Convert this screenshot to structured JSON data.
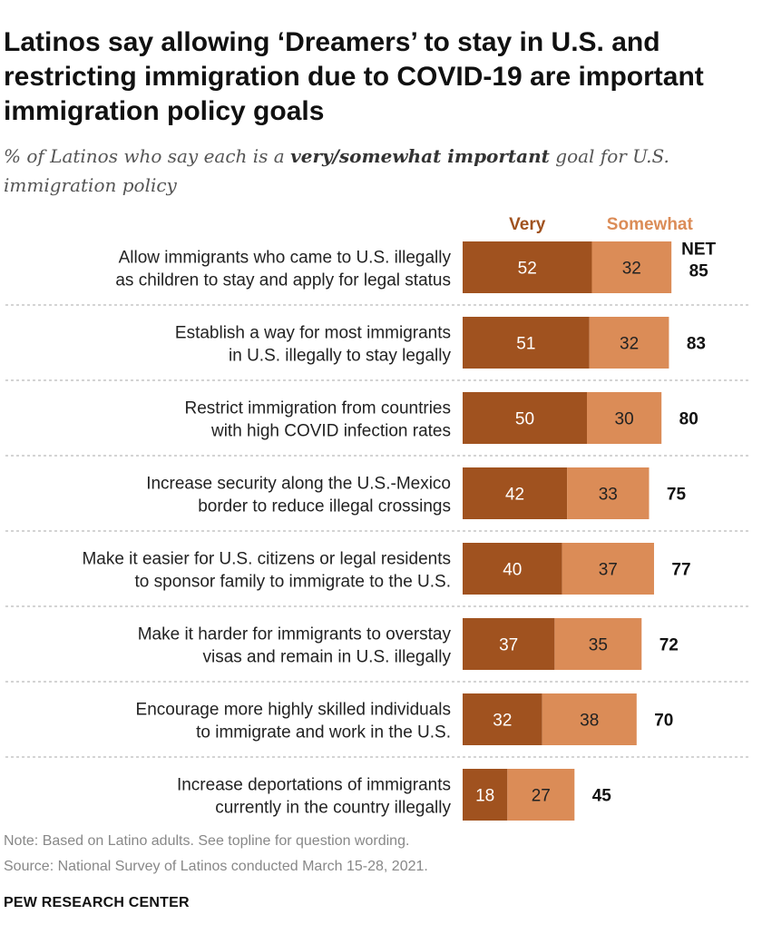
{
  "title": "Latinos say allowing ‘Dreamers’ to stay in U.S. and restricting immigration due to COVID-19 are important immigration policy goals",
  "subtitle": {
    "before": "% of Latinos who say each is a ",
    "emphasis": "very/somewhat important",
    "after": " goal for U.S. immigration policy"
  },
  "note": "Note: Based on Latino adults. See topline for question wording.",
  "source": "Source: National Survey of Latinos conducted March 15-28, 2021.",
  "brand": "PEW RESEARCH CENTER",
  "chart_data": {
    "type": "bar",
    "orientation": "horizontal",
    "stacked": true,
    "categories": [
      [
        "Allow immigrants who came to U.S. illegally",
        "as children to stay and apply for legal status"
      ],
      [
        "Establish a way for most immigrants",
        "in U.S. illegally to stay legally"
      ],
      [
        "Restrict immigration from countries",
        "with high COVID infection rates"
      ],
      [
        "Increase security along the U.S.-Mexico",
        "border to reduce illegal crossings"
      ],
      [
        "Make it easier for U.S. citizens or legal residents",
        "to sponsor family to immigrate to the U.S."
      ],
      [
        "Make it harder for immigrants to overstay",
        "visas and remain in U.S. illegally"
      ],
      [
        "Encourage more highly skilled individuals",
        "to immigrate and work in the U.S."
      ],
      [
        "Increase deportations of immigrants",
        "currently in the country illegally"
      ]
    ],
    "series": [
      {
        "name": "Very",
        "color": "#a0521f",
        "values": [
          52,
          51,
          50,
          42,
          40,
          37,
          32,
          18
        ]
      },
      {
        "name": "Somewhat",
        "color": "#db8c57",
        "values": [
          32,
          32,
          30,
          33,
          37,
          35,
          38,
          27
        ]
      }
    ],
    "net_label": "NET",
    "net": [
      85,
      83,
      80,
      75,
      77,
      72,
      70,
      45
    ],
    "legend_position": "top",
    "grid": false
  }
}
